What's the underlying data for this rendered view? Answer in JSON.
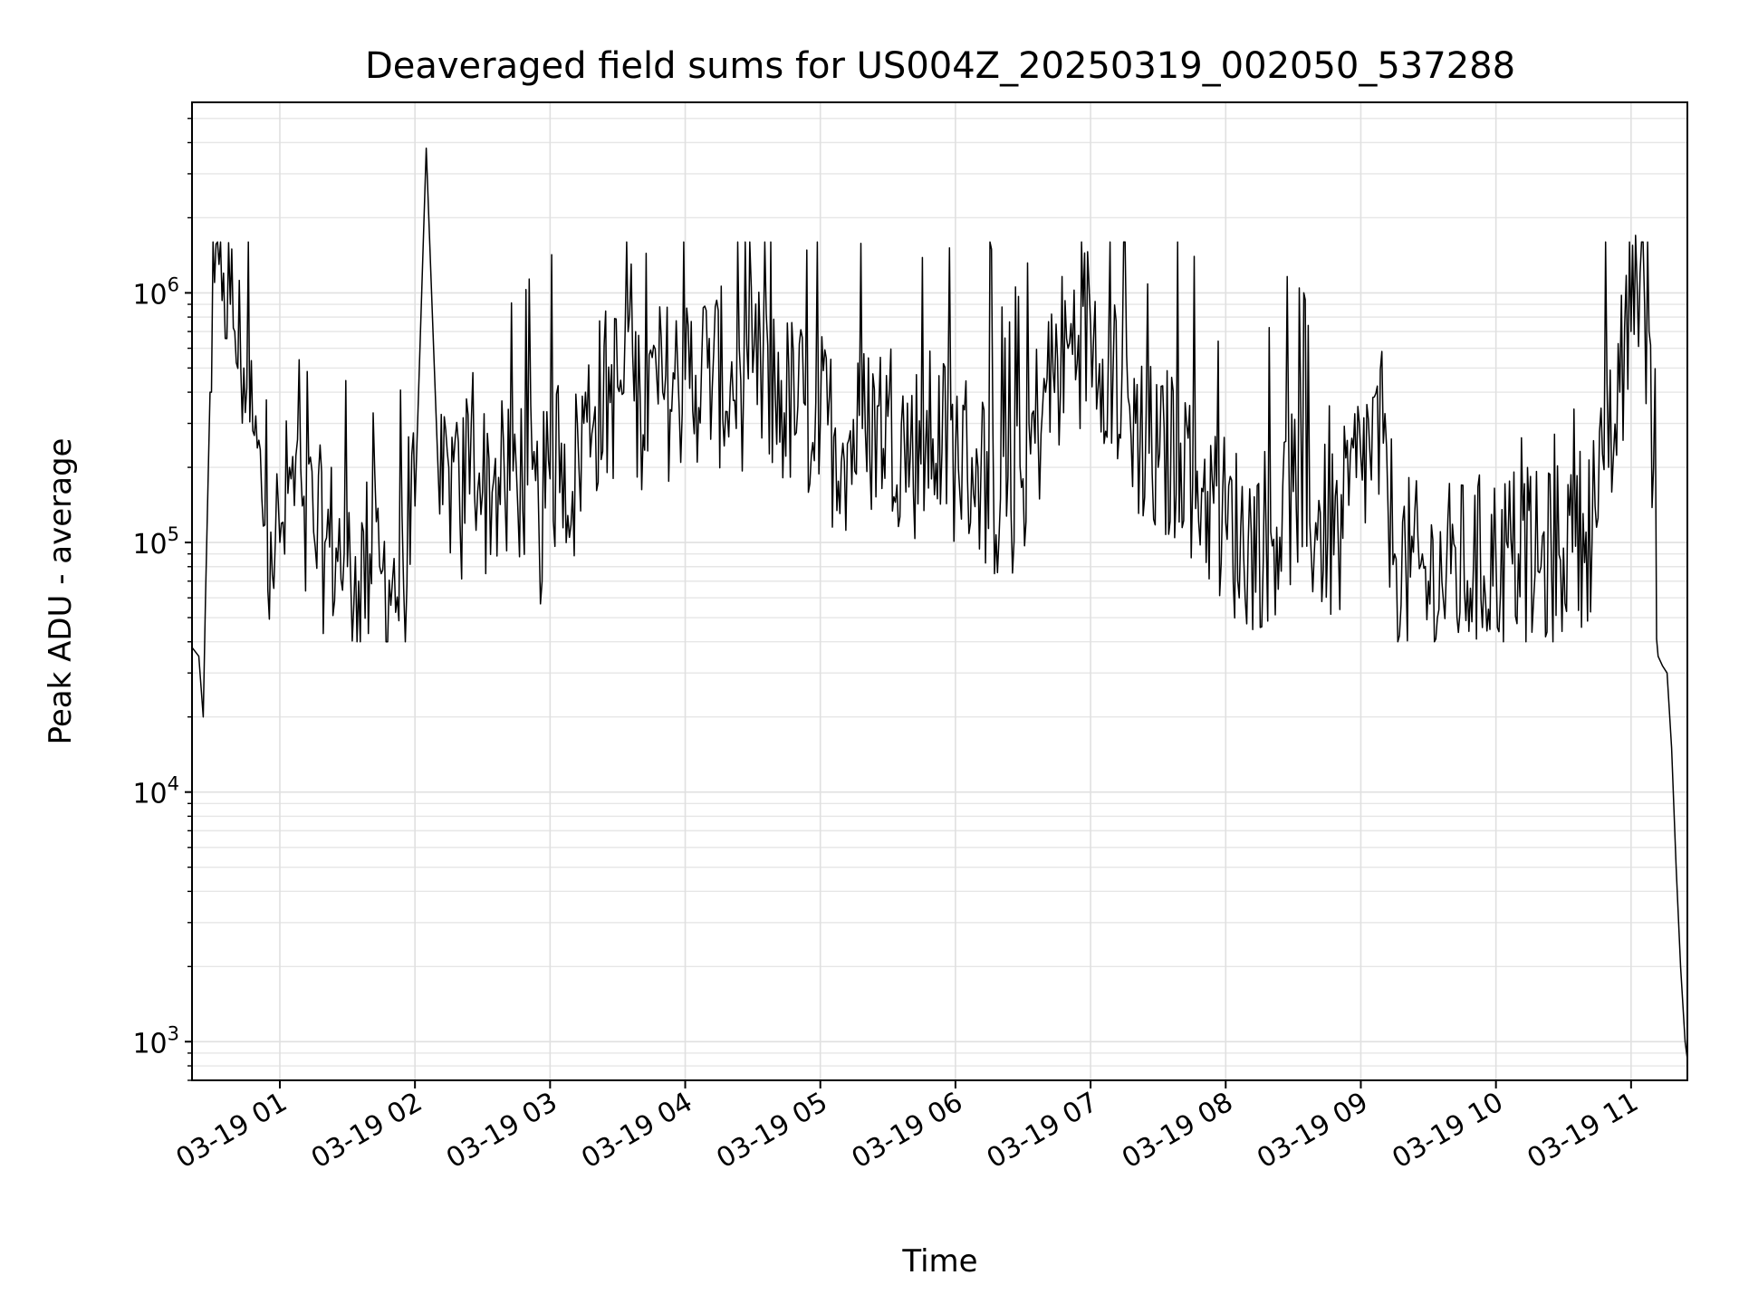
{
  "chart_data": {
    "type": "line",
    "title": "Deaveraged field sums for US004Z_20250319_002050_537288",
    "xlabel": "Time",
    "ylabel": "Peak ADU - average",
    "yscale": "log",
    "grid": true,
    "xlim": [
      "2025-03-19 00:21",
      "2025-03-19 11:25"
    ],
    "ylim": [
      700,
      5800000
    ],
    "x_ticks": [
      {
        "value": "2025-03-19 01:00",
        "label": "03-19 01"
      },
      {
        "value": "2025-03-19 02:00",
        "label": "03-19 02"
      },
      {
        "value": "2025-03-19 03:00",
        "label": "03-19 03"
      },
      {
        "value": "2025-03-19 04:00",
        "label": "03-19 04"
      },
      {
        "value": "2025-03-19 05:00",
        "label": "03-19 05"
      },
      {
        "value": "2025-03-19 06:00",
        "label": "03-19 06"
      },
      {
        "value": "2025-03-19 07:00",
        "label": "03-19 07"
      },
      {
        "value": "2025-03-19 08:00",
        "label": "03-19 08"
      },
      {
        "value": "2025-03-19 09:00",
        "label": "03-19 09"
      },
      {
        "value": "2025-03-19 10:00",
        "label": "03-19 10"
      },
      {
        "value": "2025-03-19 11:00",
        "label": "03-19 11"
      }
    ],
    "y_ticks": [
      {
        "value": 1000,
        "base": "10",
        "exp": "3"
      },
      {
        "value": 10000,
        "base": "10",
        "exp": "4"
      },
      {
        "value": 100000,
        "base": "10",
        "exp": "5"
      },
      {
        "value": 1000000,
        "base": "10",
        "exp": "6"
      }
    ],
    "series_color": "#000000",
    "series": [
      {
        "x": [
          "2025-03-19 00:21",
          "2025-03-19 00:24",
          "2025-03-19 00:26",
          "2025-03-19 00:27",
          "2025-03-19 00:29",
          "2025-03-19 00:31",
          "2025-03-19 00:33",
          "2025-03-19 00:35",
          "2025-03-19 00:38",
          "2025-03-19 00:40",
          "2025-03-19 00:44",
          "2025-03-19 00:48",
          "2025-03-19 00:52",
          "2025-03-19 00:56",
          "2025-03-19 01:00",
          "2025-03-19 01:05",
          "2025-03-19 01:10",
          "2025-03-19 01:15",
          "2025-03-19 01:20",
          "2025-03-19 01:25",
          "2025-03-19 01:30",
          "2025-03-19 01:35",
          "2025-03-19 01:40",
          "2025-03-19 01:45",
          "2025-03-19 01:50",
          "2025-03-19 01:55",
          "2025-03-19 02:00",
          "2025-03-19 02:05",
          "2025-03-19 02:11",
          "2025-03-19 02:15",
          "2025-03-19 02:20",
          "2025-03-19 02:25",
          "2025-03-19 02:30",
          "2025-03-19 02:35",
          "2025-03-19 02:40",
          "2025-03-19 02:45",
          "2025-03-19 02:50",
          "2025-03-19 02:55",
          "2025-03-19 03:00",
          "2025-03-19 03:05",
          "2025-03-19 03:10",
          "2025-03-19 03:15",
          "2025-03-19 03:20",
          "2025-03-19 03:30",
          "2025-03-19 03:40",
          "2025-03-19 03:50",
          "2025-03-19 04:00",
          "2025-03-19 04:10",
          "2025-03-19 04:20",
          "2025-03-19 04:30",
          "2025-03-19 04:40",
          "2025-03-19 04:50",
          "2025-03-19 05:00",
          "2025-03-19 05:10",
          "2025-03-19 05:20",
          "2025-03-19 05:30",
          "2025-03-19 05:40",
          "2025-03-19 05:50",
          "2025-03-19 06:00",
          "2025-03-19 06:10",
          "2025-03-19 06:20",
          "2025-03-19 06:30",
          "2025-03-19 06:40",
          "2025-03-19 06:50",
          "2025-03-19 07:00",
          "2025-03-19 07:10",
          "2025-03-19 07:20",
          "2025-03-19 07:30",
          "2025-03-19 07:40",
          "2025-03-19 07:50",
          "2025-03-19 08:00",
          "2025-03-19 08:10",
          "2025-03-19 08:20",
          "2025-03-19 08:30",
          "2025-03-19 08:40",
          "2025-03-19 08:50",
          "2025-03-19 09:00",
          "2025-03-19 09:10",
          "2025-03-19 09:15",
          "2025-03-19 09:20",
          "2025-03-19 09:30",
          "2025-03-19 09:40",
          "2025-03-19 09:50",
          "2025-03-19 10:00",
          "2025-03-19 10:10",
          "2025-03-19 10:20",
          "2025-03-19 10:30",
          "2025-03-19 10:40",
          "2025-03-19 10:50",
          "2025-03-19 10:55",
          "2025-03-19 11:00",
          "2025-03-19 11:02",
          "2025-03-19 11:04",
          "2025-03-19 11:06",
          "2025-03-19 11:08",
          "2025-03-19 11:10",
          "2025-03-19 11:12",
          "2025-03-19 11:14",
          "2025-03-19 11:16",
          "2025-03-19 11:18",
          "2025-03-19 11:20",
          "2025-03-19 11:22",
          "2025-03-19 11:24",
          "2025-03-19 11:25"
        ],
        "y": [
          38000,
          35000,
          20000,
          60000,
          400000,
          1100000,
          1300000,
          1200000,
          900000,
          700000,
          500000,
          280000,
          150000,
          110000,
          100000,
          180000,
          140000,
          110000,
          100000,
          95000,
          80000,
          70000,
          90000,
          75000,
          70000,
          65000,
          140000,
          3800000,
          130000,
          200000,
          120000,
          300000,
          160000,
          180000,
          150000,
          200000,
          170000,
          120000,
          180000,
          250000,
          160000,
          300000,
          350000,
          420000,
          380000,
          400000,
          450000,
          500000,
          420000,
          480000,
          380000,
          350000,
          300000,
          250000,
          280000,
          320000,
          230000,
          260000,
          230000,
          200000,
          150000,
          180000,
          400000,
          600000,
          750000,
          500000,
          300000,
          200000,
          250000,
          160000,
          120000,
          100000,
          110000,
          160000,
          120000,
          100000,
          220000,
          250000,
          90000,
          80000,
          70000,
          75000,
          80000,
          85000,
          90000,
          80000,
          95000,
          110000,
          200000,
          400000,
          700000,
          1700000,
          1200000,
          900000,
          700000,
          200000,
          35000,
          32000,
          30000,
          15000,
          5000,
          2000,
          1000,
          850
        ]
      }
    ]
  }
}
